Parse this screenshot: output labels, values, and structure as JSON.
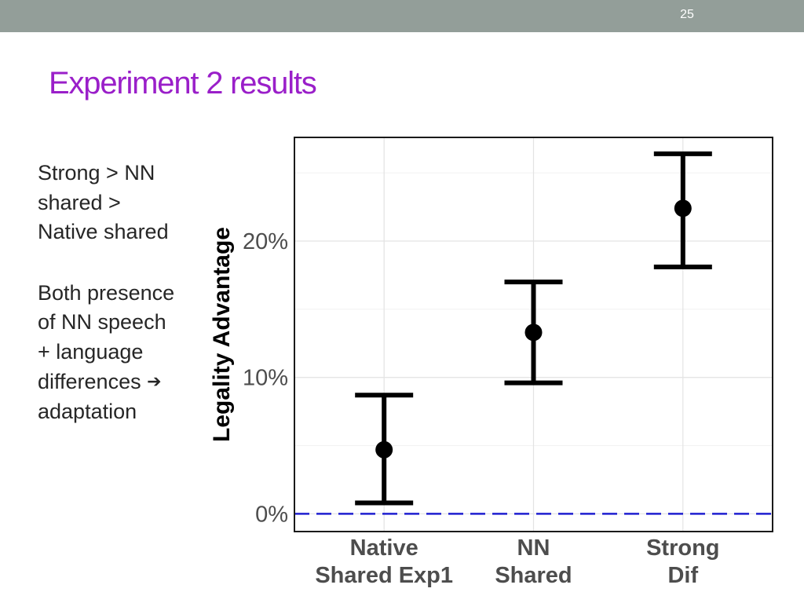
{
  "slide": {
    "number": "25",
    "title": "Experiment 2 results",
    "notes_block1": [
      "Strong > NN",
      "shared >",
      "Native shared"
    ],
    "notes_block2": [
      "Both presence",
      "of NN speech",
      "+ language",
      "differences",
      "adaptation"
    ],
    "arrow_icon": "right-arrow-icon"
  },
  "colors": {
    "topbar": "#939e99",
    "title": "#9a1fc9",
    "reference_line": "#1f1fd0",
    "marks": "#000000"
  },
  "chart_data": {
    "type": "scatter",
    "subtype": "point-with-errorbars",
    "ylabel": "Legality Advantage",
    "xlabel": "",
    "categories": [
      "Native Shared Exp1",
      "NN Shared",
      "Strong Dif"
    ],
    "category_labels": [
      [
        "Native",
        "Shared Exp1"
      ],
      [
        "NN",
        "Shared"
      ],
      [
        "Strong",
        "Dif"
      ]
    ],
    "values": [
      4.7,
      13.3,
      22.4
    ],
    "error_low": [
      0.8,
      9.6,
      18.1
    ],
    "error_high": [
      8.7,
      17.0,
      26.4
    ],
    "ylim": [
      -1.3,
      27.6
    ],
    "yticks": [
      0,
      10,
      20
    ],
    "ytick_labels": [
      "0%",
      "10%",
      "20%"
    ],
    "reference_line": {
      "y": 0,
      "style": "dashed"
    },
    "grid": true,
    "legend": false
  }
}
